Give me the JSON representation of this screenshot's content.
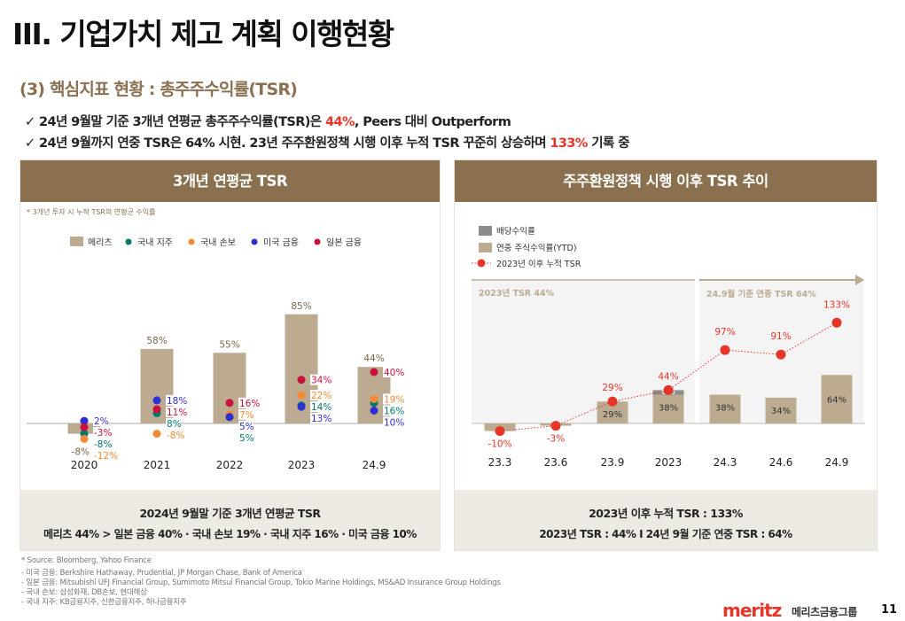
{
  "header": {
    "title": "III. 기업가치 제고 계획 이행현황",
    "subtitle": "(3) 핵심지표 현황 : 총주주수익률(TSR)"
  },
  "bullets": [
    {
      "check": "✓",
      "pre": "24년 9월말 기준 3개년 연평균 총주주수익률(TSR)은 ",
      "highlight": "44%",
      "post": ", Peers  대비 Outperform"
    },
    {
      "check": "✓",
      "pre": "24년 9월까지 연중 TSR은 64% 시현. 23년 주주환원정책 시행 이후 누적 TSR 꾸준히 상승하며 ",
      "highlight": "133%",
      "post": " 기록 중"
    }
  ],
  "colors": {
    "brand": "#8a704e",
    "bar": "#bcab91",
    "dividend": "#8c8c8c",
    "highlight": "#e8352a",
    "holding": "#00796b",
    "insurance": "#f58a36",
    "us": "#2d2fd0",
    "japan": "#c8103c"
  },
  "chart_data": [
    {
      "type": "bar",
      "title": "3개년 연평균 TSR",
      "note": "* 3개년 투자 시 누적 TSR의 연평균 수익률",
      "categories": [
        "2020",
        "2021",
        "2022",
        "2023",
        "24.9"
      ],
      "series": [
        {
          "name": "메리츠",
          "kind": "bar",
          "color": "#bcab91",
          "label_color": "#7a6648",
          "values": [
            -8,
            58,
            55,
            85,
            44
          ]
        },
        {
          "name": "국내 지주",
          "kind": "dot",
          "color": "#00796b",
          "values": [
            -8,
            8,
            5,
            14,
            16
          ]
        },
        {
          "name": "국내 손보",
          "kind": "dot",
          "color": "#f58a36",
          "values": [
            -12,
            -8,
            7,
            22,
            19
          ]
        },
        {
          "name": "미국 금융",
          "kind": "dot",
          "color": "#2d2fd0",
          "values": [
            2,
            18,
            5,
            13,
            10
          ]
        },
        {
          "name": "일본 금융",
          "kind": "dot",
          "color": "#c8103c",
          "values": [
            -3,
            11,
            16,
            34,
            40
          ]
        }
      ],
      "value_labels": [
        [
          {
            "t": "2%",
            "s": 3
          },
          {
            "t": "-3%",
            "s": 4
          },
          {
            "t": "-8%",
            "s": 1
          },
          {
            "t": "-12%",
            "s": 2
          }
        ],
        [
          {
            "t": "18%",
            "s": 3
          },
          {
            "t": "11%",
            "s": 4
          },
          {
            "t": "8%",
            "s": 1
          },
          {
            "t": "-8%",
            "s": 2
          }
        ],
        [
          {
            "t": "16%",
            "s": 4
          },
          {
            "t": "7%",
            "s": 2
          },
          {
            "t": "5%",
            "s": 3
          },
          {
            "t": "5%",
            "s": 1
          }
        ],
        [
          {
            "t": "34%",
            "s": 4
          },
          {
            "t": "22%",
            "s": 2
          },
          {
            "t": "14%",
            "s": 1
          },
          {
            "t": "13%",
            "s": 3
          }
        ],
        [
          {
            "t": "40%",
            "s": 4
          },
          {
            "t": "19%",
            "s": 2
          },
          {
            "t": "16%",
            "s": 1
          },
          {
            "t": "10%",
            "s": 3
          }
        ]
      ],
      "legend_position": "top",
      "grid": false,
      "summary": {
        "line1": "2024년 9월말 기준 3개년 연평균 TSR",
        "line2": "메리츠 44%  >  일본 금융 40% · 국내 손보 19% · 국내 지주 16% · 미국 금융 10%"
      }
    },
    {
      "type": "bar+line",
      "title": "주주환원정책 시행 이후 TSR 추이",
      "categories": [
        "23.3",
        "23.6",
        "23.9",
        "2023",
        "24.3",
        "24.6",
        "24.9"
      ],
      "series": [
        {
          "name": "연중 주식수익률(YTD)",
          "kind": "bar",
          "color": "#bcab91",
          "values": [
            -10,
            -3,
            29,
            38,
            38,
            34,
            64
          ]
        },
        {
          "name": "배당수익률",
          "kind": "bar-stack",
          "color": "#8c8c8c",
          "values": [
            0,
            0,
            0,
            6,
            0,
            0,
            0
          ]
        },
        {
          "name": "2023년 이후 누적 TSR",
          "kind": "line",
          "color": "#e8352a",
          "values": [
            -10,
            -3,
            29,
            44,
            97,
            91,
            133
          ]
        }
      ],
      "bar_labels": [
        "",
        "",
        "29%",
        "38%",
        "38%",
        "34%",
        "64%"
      ],
      "dividend_label": "6%",
      "line_labels": [
        "-10%",
        "-3%",
        "29%",
        "44%",
        "97%",
        "91%",
        "133%"
      ],
      "periods": [
        "2023년 TSR 44%",
        "24.9월 기준 연중 TSR 64%"
      ],
      "legend_position": "top-left",
      "grid": false,
      "summary": {
        "line1": "2023년 이후 누적 TSR : 133%",
        "line2": "2023년 TSR : 44%  Ι  24년 9월 기준 연중 TSR : 64%"
      }
    }
  ],
  "footnotes": [
    "* Source: Bloomberg, Yahoo Finance",
    " - 미국 금융: Berkshire Hathaway, Prudential, JP Morgan Chase, Bank of America",
    " - 일본 금융: Mitsubishi UFJ Financial Group, Sumimoto Mitsui Financial Group, Tokio Marine Holdings, MS&AD Insurance Group Holdings",
    " - 국내 손보: 삼성화재, DB손보, 현대해상",
    " - 국내 지주: KB금융지주, 신한금융지주, 하나금융지주"
  ],
  "footer": {
    "logo": "meritz",
    "logo_kr": "메리츠금융그룹",
    "page": "11"
  }
}
